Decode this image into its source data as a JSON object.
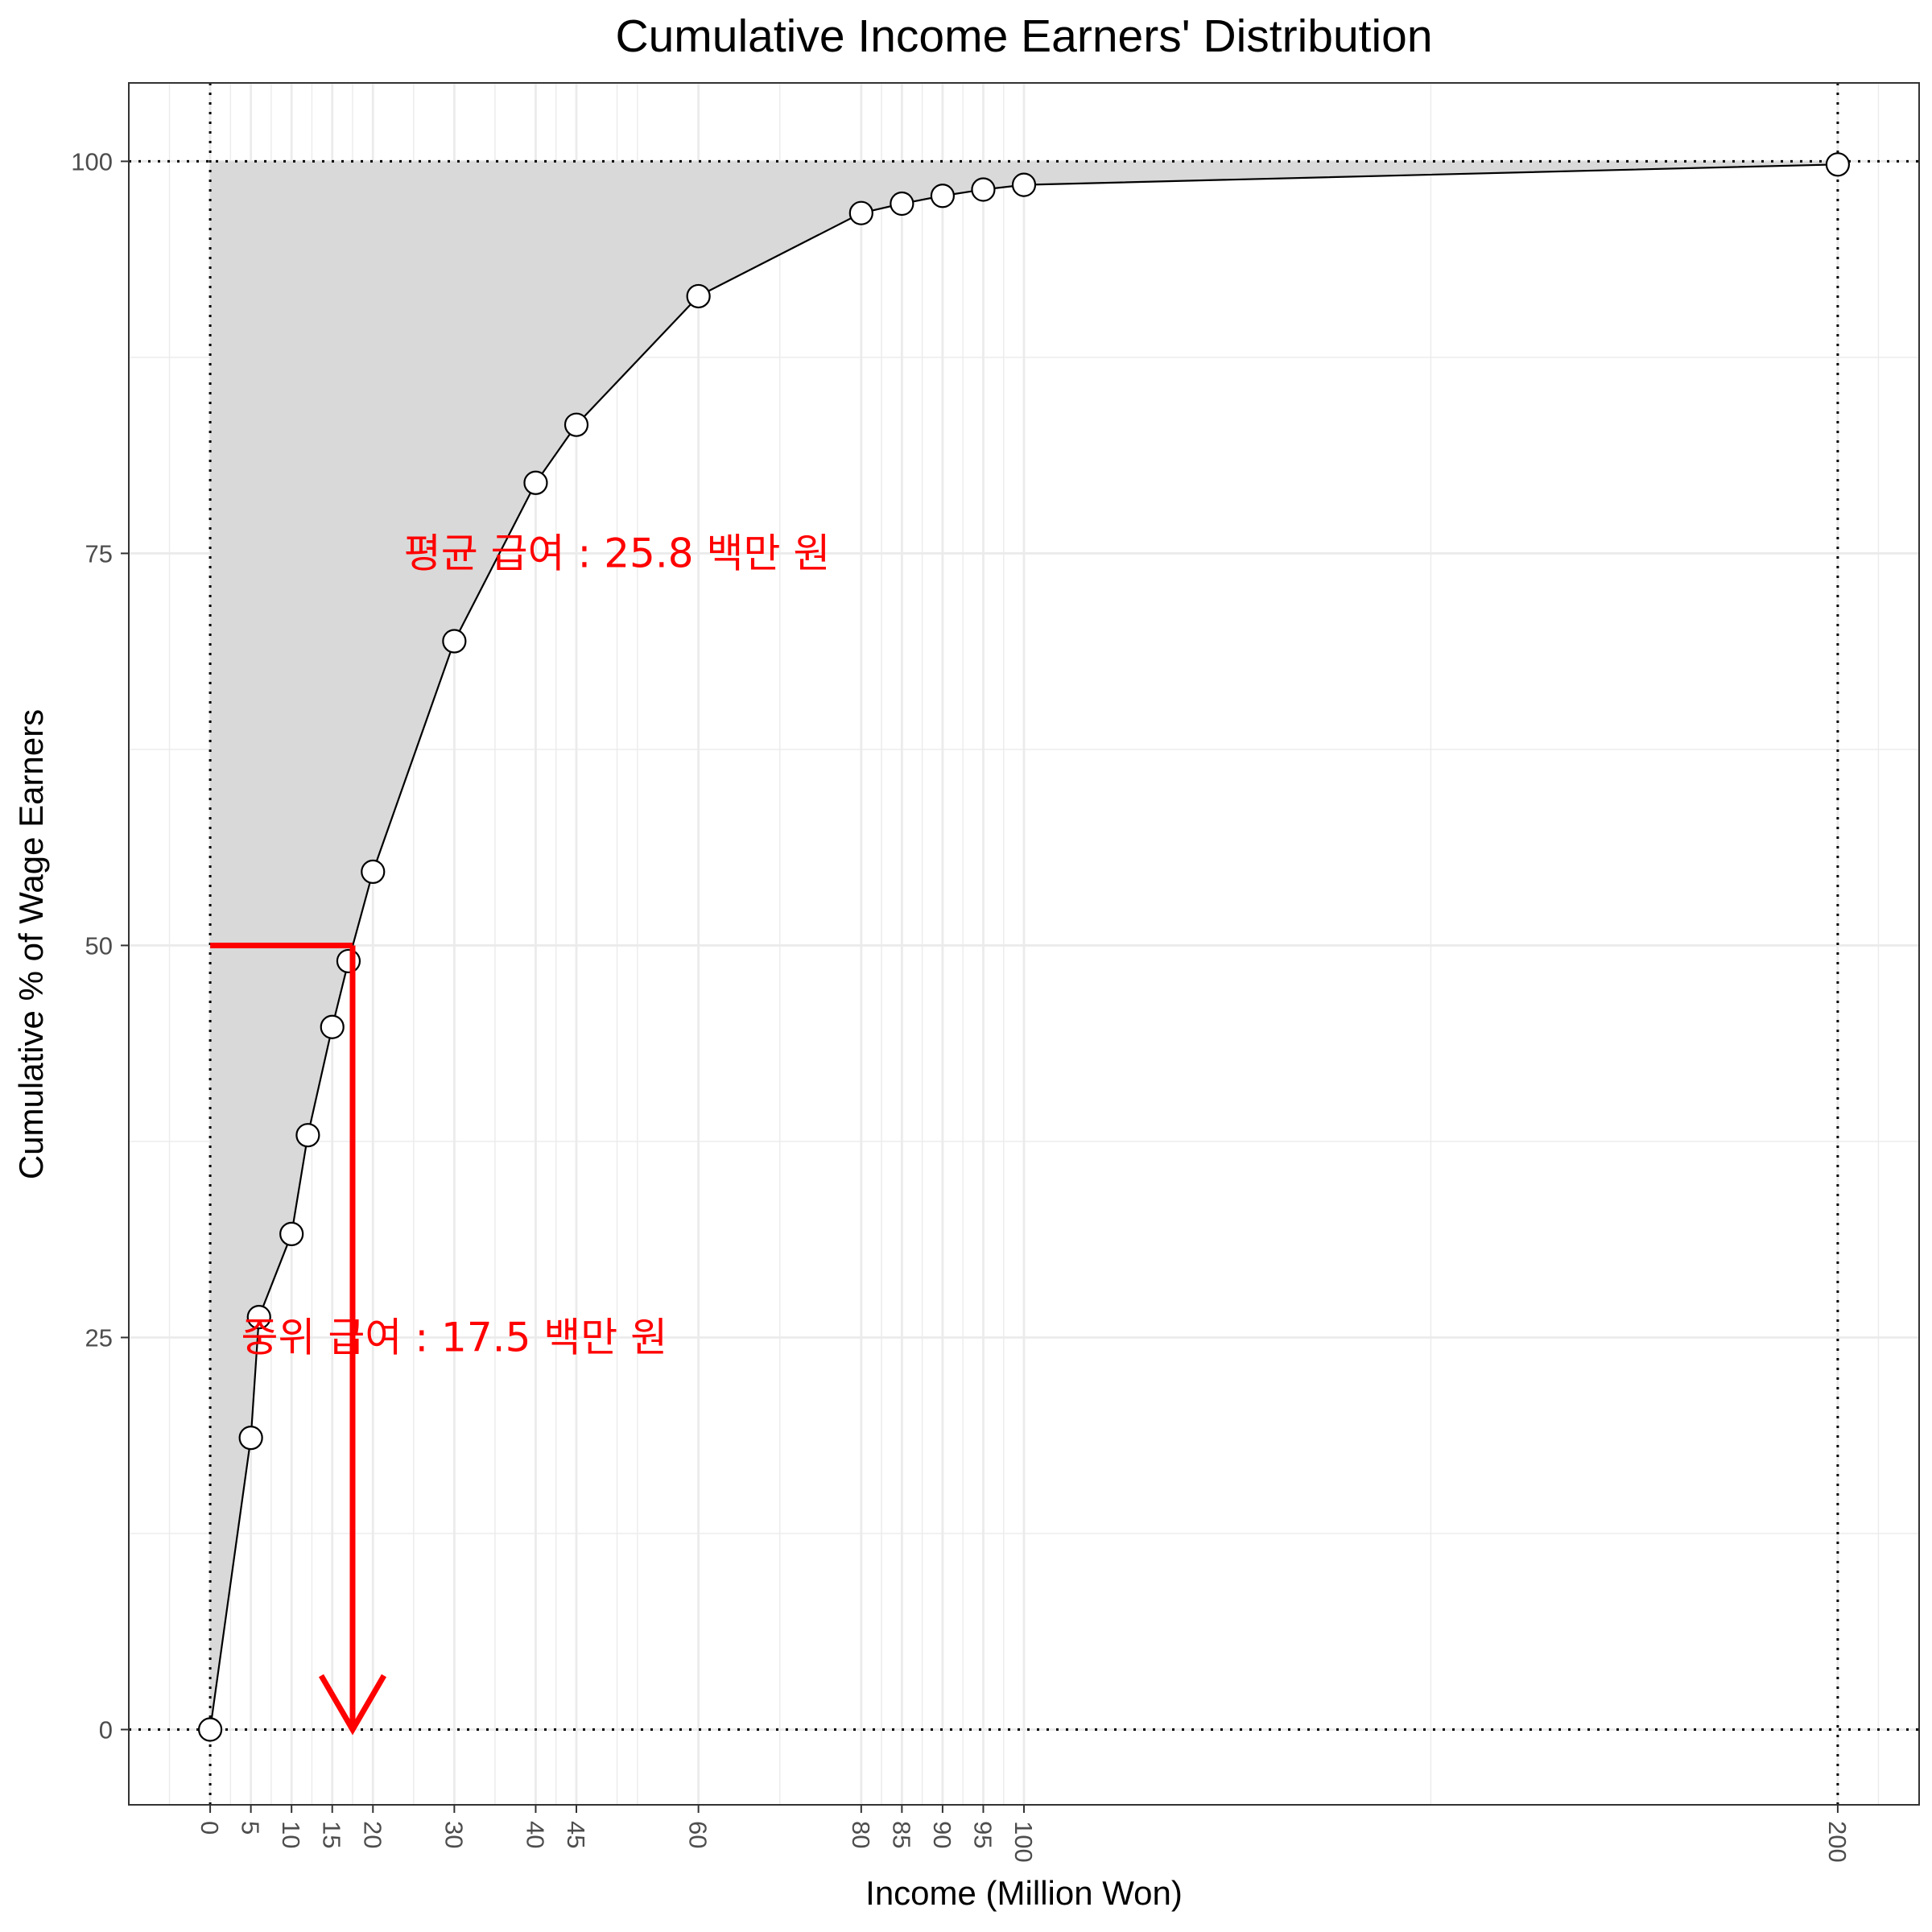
{
  "chart_data": {
    "type": "area",
    "title": "Cumulative Income Earners' Distribution",
    "xlabel": "Income (Million Won)",
    "ylabel": "Cumulative % of Wage Earners",
    "xlim": [
      -10,
      210
    ],
    "ylim": [
      -4.8,
      105
    ],
    "x_ticks": [
      0,
      5,
      10,
      15,
      20,
      30,
      40,
      45,
      60,
      80,
      85,
      90,
      95,
      100,
      200
    ],
    "y_ticks": [
      0,
      25,
      50,
      75,
      100
    ],
    "x_minor_gridlines": [
      -5,
      2.5,
      7.5,
      12.5,
      17.5,
      25,
      35,
      42.5,
      50,
      52.5,
      70,
      82.5,
      87.5,
      92.5,
      97.5,
      150,
      205
    ],
    "y_minor_gridlines": [
      12.5,
      37.5,
      62.5,
      87.5
    ],
    "grid": true,
    "series": [
      {
        "x": [
          0,
          5,
          6,
          10,
          12,
          15,
          17,
          20,
          30,
          40,
          45,
          60,
          80,
          85,
          90,
          95,
          100,
          200
        ],
        "y": [
          0,
          18.6,
          26.3,
          31.6,
          37.9,
          44.8,
          49.0,
          54.7,
          69.4,
          79.5,
          83.2,
          91.4,
          96.7,
          97.3,
          97.8,
          98.2,
          98.5,
          99.8
        ]
      }
    ],
    "reference_lines": {
      "x": [
        0,
        200
      ],
      "y": [
        0,
        100
      ]
    },
    "median_marker": {
      "x": 17.5,
      "y": 50
    },
    "annotations": [
      {
        "text": "평균 급여 : 25.8 백만 원",
        "x": 50,
        "y": 75
      },
      {
        "text": "중위 급여 : 17.5 백만 원",
        "x": 30,
        "y": 25
      }
    ],
    "colors": {
      "fill": "#d9d9d9",
      "line": "#000000",
      "point_fill": "#ffffff",
      "grid": "#ebebeb",
      "annotation": "#ff0000",
      "reference": "#000000"
    }
  }
}
